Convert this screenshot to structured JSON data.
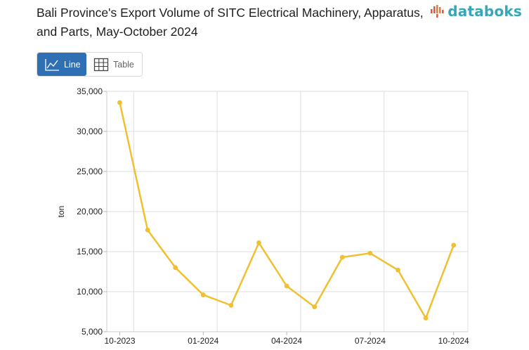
{
  "header": {
    "title": "Bali Province's Export Volume of SITC Electrical Machinery, Apparatus, and Parts, May-October 2024",
    "logo_text": "databoks"
  },
  "view_toggle": {
    "line_label": "Line",
    "table_label": "Table",
    "active": "line"
  },
  "colors": {
    "line": "#f0c030",
    "accent": "#2f6fb3",
    "logo": "#35a7b8"
  },
  "chart_data": {
    "type": "line",
    "x": [
      "10-2023",
      "11-2023",
      "12-2023",
      "01-2024",
      "02-2024",
      "03-2024",
      "04-2024",
      "05-2024",
      "06-2024",
      "07-2024",
      "08-2024",
      "09-2024",
      "10-2024"
    ],
    "series": [
      {
        "values": [
          33600,
          17700,
          13000,
          9600,
          8300,
          16100,
          10700,
          8100,
          14300,
          14800,
          12700,
          6700,
          15800
        ]
      }
    ],
    "ylabel": "ton",
    "xlabel": "",
    "ylim": [
      5000,
      35000
    ],
    "yticks": [
      "5,000",
      "10,000",
      "15,000",
      "20,000",
      "25,000",
      "30,000",
      "35,000"
    ],
    "xtick_labels": [
      "10-2023",
      "01-2024",
      "04-2024",
      "07-2024",
      "10-2024"
    ],
    "grid": true
  }
}
